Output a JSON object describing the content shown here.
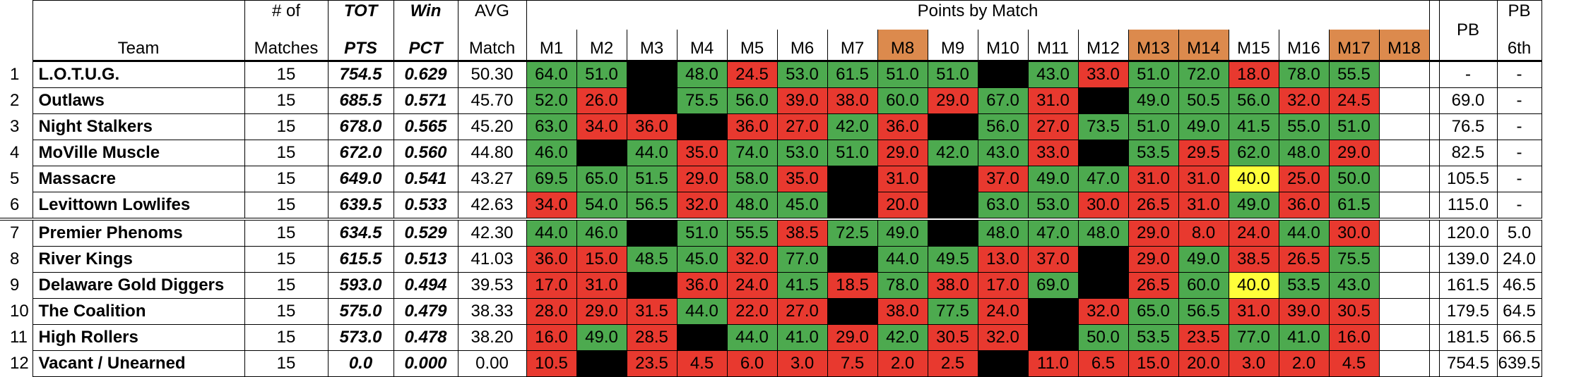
{
  "headers": {
    "team": "Team",
    "matches": [
      "# of",
      "Matches"
    ],
    "tot": [
      "TOT",
      "PTS"
    ],
    "win": [
      "Win",
      "PCT"
    ],
    "avg": [
      "AVG",
      "Match"
    ],
    "points_by_match": "Points by Match",
    "match_cols": [
      "M1",
      "M2",
      "M3",
      "M4",
      "M5",
      "M6",
      "M7",
      "M8",
      "M9",
      "M10",
      "M11",
      "M12",
      "M13",
      "M14",
      "M15",
      "M16",
      "M17",
      "M18"
    ],
    "highlighted_match_cols": [
      "M8",
      "M13",
      "M14",
      "M17",
      "M18"
    ],
    "pb": "PB",
    "pb6": [
      "PB",
      "6th"
    ]
  },
  "colors": {
    "green": "#4daa4f",
    "red": "#e8392f",
    "yellow": "#ffff3a",
    "black": "#000000",
    "orange": "#dc8a4d"
  },
  "rows": [
    {
      "num": "1",
      "team": "L.O.T.U.G.",
      "matches": "15",
      "tot": "754.5",
      "win": "0.629",
      "avg": "50.30",
      "scores": [
        [
          "64.0",
          "g"
        ],
        [
          "51.0",
          "g"
        ],
        [
          "",
          "k"
        ],
        [
          "48.0",
          "g"
        ],
        [
          "24.5",
          "r"
        ],
        [
          "53.0",
          "g"
        ],
        [
          "61.5",
          "g"
        ],
        [
          "51.0",
          "g"
        ],
        [
          "51.0",
          "g"
        ],
        [
          "",
          "k"
        ],
        [
          "43.0",
          "g"
        ],
        [
          "33.0",
          "r"
        ],
        [
          "51.0",
          "g"
        ],
        [
          "72.0",
          "g"
        ],
        [
          "18.0",
          "r"
        ],
        [
          "78.0",
          "g"
        ],
        [
          "55.5",
          "g"
        ],
        [
          "",
          ""
        ]
      ],
      "pb": "-",
      "pb6": "-"
    },
    {
      "num": "2",
      "team": "Outlaws",
      "matches": "15",
      "tot": "685.5",
      "win": "0.571",
      "avg": "45.70",
      "scores": [
        [
          "52.0",
          "g"
        ],
        [
          "26.0",
          "r"
        ],
        [
          "",
          "k"
        ],
        [
          "75.5",
          "g"
        ],
        [
          "56.0",
          "g"
        ],
        [
          "39.0",
          "r"
        ],
        [
          "38.0",
          "r"
        ],
        [
          "60.0",
          "g"
        ],
        [
          "29.0",
          "r"
        ],
        [
          "67.0",
          "g"
        ],
        [
          "31.0",
          "r"
        ],
        [
          "",
          "k"
        ],
        [
          "49.0",
          "g"
        ],
        [
          "50.5",
          "g"
        ],
        [
          "56.0",
          "g"
        ],
        [
          "32.0",
          "r"
        ],
        [
          "24.5",
          "r"
        ],
        [
          "",
          ""
        ]
      ],
      "pb": "69.0",
      "pb6": "-"
    },
    {
      "num": "3",
      "team": "Night Stalkers",
      "matches": "15",
      "tot": "678.0",
      "win": "0.565",
      "avg": "45.20",
      "scores": [
        [
          "63.0",
          "g"
        ],
        [
          "34.0",
          "r"
        ],
        [
          "36.0",
          "r"
        ],
        [
          "",
          "k"
        ],
        [
          "36.0",
          "r"
        ],
        [
          "27.0",
          "r"
        ],
        [
          "42.0",
          "g"
        ],
        [
          "36.0",
          "r"
        ],
        [
          "",
          "k"
        ],
        [
          "56.0",
          "g"
        ],
        [
          "27.0",
          "r"
        ],
        [
          "73.5",
          "g"
        ],
        [
          "51.0",
          "g"
        ],
        [
          "49.0",
          "g"
        ],
        [
          "41.5",
          "g"
        ],
        [
          "55.0",
          "g"
        ],
        [
          "51.0",
          "g"
        ],
        [
          "",
          ""
        ]
      ],
      "pb": "76.5",
      "pb6": "-"
    },
    {
      "num": "4",
      "team": "MoVille Muscle",
      "matches": "15",
      "tot": "672.0",
      "win": "0.560",
      "avg": "44.80",
      "scores": [
        [
          "46.0",
          "g"
        ],
        [
          "",
          "k"
        ],
        [
          "44.0",
          "g"
        ],
        [
          "35.0",
          "r"
        ],
        [
          "74.0",
          "g"
        ],
        [
          "53.0",
          "g"
        ],
        [
          "51.0",
          "g"
        ],
        [
          "29.0",
          "r"
        ],
        [
          "42.0",
          "g"
        ],
        [
          "43.0",
          "g"
        ],
        [
          "33.0",
          "r"
        ],
        [
          "",
          "k"
        ],
        [
          "53.5",
          "g"
        ],
        [
          "29.5",
          "r"
        ],
        [
          "62.0",
          "g"
        ],
        [
          "48.0",
          "g"
        ],
        [
          "29.0",
          "r"
        ],
        [
          "",
          ""
        ]
      ],
      "pb": "82.5",
      "pb6": "-"
    },
    {
      "num": "5",
      "team": "Massacre",
      "matches": "15",
      "tot": "649.0",
      "win": "0.541",
      "avg": "43.27",
      "scores": [
        [
          "69.5",
          "g"
        ],
        [
          "65.0",
          "g"
        ],
        [
          "51.5",
          "g"
        ],
        [
          "29.0",
          "r"
        ],
        [
          "58.0",
          "g"
        ],
        [
          "35.0",
          "r"
        ],
        [
          "",
          "k"
        ],
        [
          "31.0",
          "r"
        ],
        [
          "",
          "k"
        ],
        [
          "37.0",
          "r"
        ],
        [
          "49.0",
          "g"
        ],
        [
          "47.0",
          "g"
        ],
        [
          "31.0",
          "r"
        ],
        [
          "31.0",
          "r"
        ],
        [
          "40.0",
          "y"
        ],
        [
          "25.0",
          "r"
        ],
        [
          "50.0",
          "g"
        ],
        [
          "",
          ""
        ]
      ],
      "pb": "105.5",
      "pb6": "-"
    },
    {
      "num": "6",
      "team": "Levittown Lowlifes",
      "matches": "15",
      "tot": "639.5",
      "win": "0.533",
      "avg": "42.63",
      "scores": [
        [
          "34.0",
          "r"
        ],
        [
          "54.0",
          "g"
        ],
        [
          "56.5",
          "g"
        ],
        [
          "32.0",
          "r"
        ],
        [
          "48.0",
          "g"
        ],
        [
          "45.0",
          "g"
        ],
        [
          "",
          "k"
        ],
        [
          "20.0",
          "r"
        ],
        [
          "",
          "k"
        ],
        [
          "63.0",
          "g"
        ],
        [
          "53.0",
          "g"
        ],
        [
          "30.0",
          "r"
        ],
        [
          "26.5",
          "r"
        ],
        [
          "31.0",
          "r"
        ],
        [
          "49.0",
          "g"
        ],
        [
          "36.0",
          "r"
        ],
        [
          "61.5",
          "g"
        ],
        [
          "",
          ""
        ]
      ],
      "pb": "115.0",
      "pb6": "-"
    },
    {
      "num": "7",
      "team": "Premier Phenoms",
      "matches": "15",
      "tot": "634.5",
      "win": "0.529",
      "avg": "42.30",
      "scores": [
        [
          "44.0",
          "g"
        ],
        [
          "46.0",
          "g"
        ],
        [
          "",
          "k"
        ],
        [
          "51.0",
          "g"
        ],
        [
          "55.5",
          "g"
        ],
        [
          "38.5",
          "r"
        ],
        [
          "72.5",
          "g"
        ],
        [
          "49.0",
          "g"
        ],
        [
          "",
          "k"
        ],
        [
          "48.0",
          "g"
        ],
        [
          "47.0",
          "g"
        ],
        [
          "48.0",
          "g"
        ],
        [
          "29.0",
          "r"
        ],
        [
          "8.0",
          "r"
        ],
        [
          "24.0",
          "r"
        ],
        [
          "44.0",
          "g"
        ],
        [
          "30.0",
          "r"
        ],
        [
          "",
          ""
        ]
      ],
      "pb": "120.0",
      "pb6": "5.0"
    },
    {
      "num": "8",
      "team": "River Kings",
      "matches": "15",
      "tot": "615.5",
      "win": "0.513",
      "avg": "41.03",
      "scores": [
        [
          "36.0",
          "r"
        ],
        [
          "15.0",
          "r"
        ],
        [
          "48.5",
          "g"
        ],
        [
          "45.0",
          "g"
        ],
        [
          "32.0",
          "r"
        ],
        [
          "77.0",
          "g"
        ],
        [
          "",
          "k"
        ],
        [
          "44.0",
          "g"
        ],
        [
          "49.5",
          "g"
        ],
        [
          "13.0",
          "r"
        ],
        [
          "37.0",
          "r"
        ],
        [
          "",
          "k"
        ],
        [
          "29.0",
          "r"
        ],
        [
          "49.0",
          "g"
        ],
        [
          "38.5",
          "r"
        ],
        [
          "26.5",
          "r"
        ],
        [
          "75.5",
          "g"
        ],
        [
          "",
          ""
        ]
      ],
      "pb": "139.0",
      "pb6": "24.0"
    },
    {
      "num": "9",
      "team": "Delaware Gold Diggers",
      "matches": "15",
      "tot": "593.0",
      "win": "0.494",
      "avg": "39.53",
      "scores": [
        [
          "17.0",
          "r"
        ],
        [
          "31.0",
          "r"
        ],
        [
          "",
          "k"
        ],
        [
          "36.0",
          "r"
        ],
        [
          "24.0",
          "r"
        ],
        [
          "41.5",
          "g"
        ],
        [
          "18.5",
          "r"
        ],
        [
          "78.0",
          "g"
        ],
        [
          "38.0",
          "r"
        ],
        [
          "17.0",
          "r"
        ],
        [
          "69.0",
          "g"
        ],
        [
          "",
          "k"
        ],
        [
          "26.5",
          "r"
        ],
        [
          "60.0",
          "g"
        ],
        [
          "40.0",
          "y"
        ],
        [
          "53.5",
          "g"
        ],
        [
          "43.0",
          "g"
        ],
        [
          "",
          ""
        ]
      ],
      "pb": "161.5",
      "pb6": "46.5"
    },
    {
      "num": "10",
      "team": "The Coalition",
      "matches": "15",
      "tot": "575.0",
      "win": "0.479",
      "avg": "38.33",
      "scores": [
        [
          "28.0",
          "r"
        ],
        [
          "29.0",
          "r"
        ],
        [
          "31.5",
          "r"
        ],
        [
          "44.0",
          "g"
        ],
        [
          "22.0",
          "r"
        ],
        [
          "27.0",
          "r"
        ],
        [
          "",
          "k"
        ],
        [
          "38.0",
          "r"
        ],
        [
          "77.5",
          "g"
        ],
        [
          "24.0",
          "r"
        ],
        [
          "",
          "k"
        ],
        [
          "32.0",
          "r"
        ],
        [
          "65.0",
          "g"
        ],
        [
          "56.5",
          "g"
        ],
        [
          "31.0",
          "r"
        ],
        [
          "39.0",
          "r"
        ],
        [
          "30.5",
          "r"
        ],
        [
          "",
          ""
        ]
      ],
      "pb": "179.5",
      "pb6": "64.5"
    },
    {
      "num": "11",
      "team": "High Rollers",
      "matches": "15",
      "tot": "573.0",
      "win": "0.478",
      "avg": "38.20",
      "scores": [
        [
          "16.0",
          "r"
        ],
        [
          "49.0",
          "g"
        ],
        [
          "28.5",
          "r"
        ],
        [
          "",
          "k"
        ],
        [
          "44.0",
          "g"
        ],
        [
          "41.0",
          "g"
        ],
        [
          "29.0",
          "r"
        ],
        [
          "42.0",
          "g"
        ],
        [
          "30.5",
          "r"
        ],
        [
          "32.0",
          "r"
        ],
        [
          "",
          "k"
        ],
        [
          "50.0",
          "g"
        ],
        [
          "53.5",
          "g"
        ],
        [
          "23.5",
          "r"
        ],
        [
          "77.0",
          "g"
        ],
        [
          "41.0",
          "g"
        ],
        [
          "16.0",
          "r"
        ],
        [
          "",
          ""
        ]
      ],
      "pb": "181.5",
      "pb6": "66.5"
    },
    {
      "num": "12",
      "team": "Vacant / Unearned",
      "matches": "15",
      "tot": "0.0",
      "win": "0.000",
      "avg": "0.00",
      "scores": [
        [
          "10.5",
          "r"
        ],
        [
          "",
          "k"
        ],
        [
          "23.5",
          "r"
        ],
        [
          "4.5",
          "r"
        ],
        [
          "6.0",
          "r"
        ],
        [
          "3.0",
          "r"
        ],
        [
          "7.5",
          "r"
        ],
        [
          "2.0",
          "r"
        ],
        [
          "2.5",
          "r"
        ],
        [
          "",
          "k"
        ],
        [
          "11.0",
          "r"
        ],
        [
          "6.5",
          "r"
        ],
        [
          "15.0",
          "r"
        ],
        [
          "20.0",
          "r"
        ],
        [
          "3.0",
          "r"
        ],
        [
          "2.0",
          "r"
        ],
        [
          "4.5",
          "r"
        ],
        [
          "",
          ""
        ]
      ],
      "pb": "754.5",
      "pb6": "639.5"
    }
  ]
}
